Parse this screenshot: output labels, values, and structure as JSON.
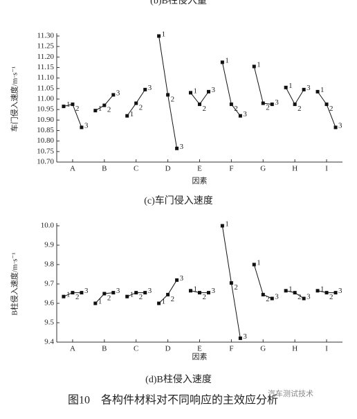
{
  "header": "(b)B柱侵入量",
  "figure_caption": "图10　各构件材料对不同响应的主效应分析",
  "watermark": "汽车测试技术",
  "chart_data": [
    {
      "type": "line",
      "caption": "(c)车门侵入速度",
      "x_label": "因素",
      "y_label": "车门侵入速度/m·s⁻¹",
      "categories": [
        "A",
        "B",
        "C",
        "D",
        "E",
        "F",
        "G",
        "H",
        "I"
      ],
      "point_labels": [
        "1",
        "2",
        "3"
      ],
      "groups": [
        {
          "values": [
            10.965,
            10.975,
            10.865
          ]
        },
        {
          "values": [
            10.945,
            10.97,
            11.02
          ]
        },
        {
          "values": [
            10.92,
            10.98,
            11.045
          ]
        },
        {
          "values": [
            11.3,
            11.02,
            10.765
          ]
        },
        {
          "values": [
            11.03,
            10.975,
            11.035
          ]
        },
        {
          "values": [
            11.175,
            10.975,
            10.92
          ]
        },
        {
          "values": [
            11.155,
            10.98,
            10.975
          ]
        },
        {
          "values": [
            11.055,
            10.975,
            11.045
          ]
        },
        {
          "values": [
            11.035,
            10.975,
            10.865
          ]
        }
      ],
      "color": "#111111",
      "ylim": [
        10.7,
        11.3
      ],
      "yticks": [
        {
          "value": 10.7,
          "label": "10.70"
        },
        10.75,
        {
          "value": 10.8,
          "label": "10.80"
        },
        10.85,
        {
          "value": 10.9,
          "label": "10.90"
        },
        10.95,
        {
          "value": 11.0,
          "label": "11.00"
        },
        11.05,
        {
          "value": 11.1,
          "label": "11.10"
        },
        11.15,
        {
          "value": 11.2,
          "label": "11.20"
        },
        11.25,
        {
          "value": 11.3,
          "label": "11.30"
        }
      ]
    },
    {
      "type": "line",
      "caption": "(d)B柱侵入速度",
      "x_label": "因素",
      "y_label": "B柱侵入速度/m·s⁻¹",
      "categories": [
        "A",
        "B",
        "C",
        "D",
        "E",
        "F",
        "G",
        "H",
        "I"
      ],
      "point_labels": [
        "1",
        "2",
        "3"
      ],
      "groups": [
        {
          "values": [
            9.635,
            9.655,
            9.655
          ]
        },
        {
          "values": [
            9.6,
            9.65,
            9.655
          ]
        },
        {
          "values": [
            9.635,
            9.655,
            9.655
          ]
        },
        {
          "values": [
            9.6,
            9.645,
            9.72
          ]
        },
        {
          "values": [
            9.665,
            9.655,
            9.655
          ]
        },
        {
          "values": [
            10.0,
            9.705,
            9.42
          ]
        },
        {
          "values": [
            9.8,
            9.645,
            9.625
          ]
        },
        {
          "values": [
            9.665,
            9.655,
            9.625
          ]
        },
        {
          "values": [
            9.665,
            9.655,
            9.655
          ]
        }
      ],
      "color": "#111111",
      "ylim": [
        9.4,
        10.0
      ],
      "yticks": [
        9.4,
        9.5,
        9.6,
        9.7,
        9.8,
        9.9,
        {
          "value": 10.0,
          "label": "10.0"
        }
      ]
    }
  ]
}
